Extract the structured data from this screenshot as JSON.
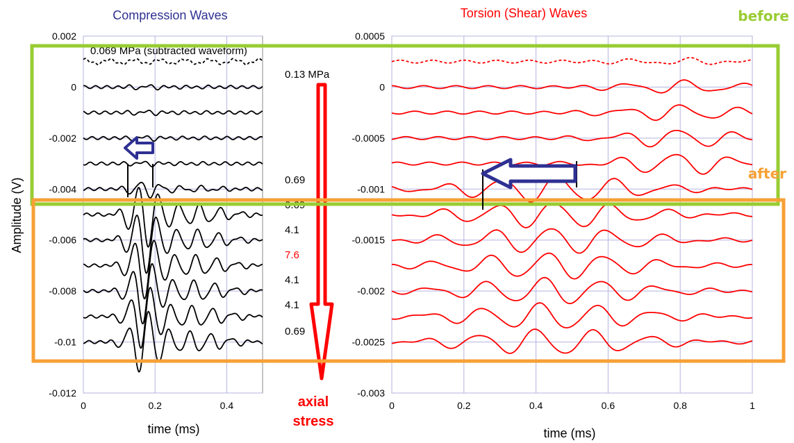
{
  "chart_data": [
    {
      "type": "line",
      "title": "Compression Waves",
      "ylabel": "Amplitude (V)",
      "xlabel": "time (ms)",
      "xlim": [
        0,
        0.5
      ],
      "ylim": [
        -0.012,
        0.002
      ],
      "x_ticks": [
        "0",
        "0.2",
        "0.4"
      ],
      "y_ticks": [
        "0.002",
        "0",
        "-0.002",
        "-0.004",
        "-0.006",
        "-0.008",
        "-0.01",
        "-0.012"
      ],
      "grid": true,
      "series": [
        {
          "offset": 0.001,
          "style": "dashed"
        },
        {
          "offset": 0.0
        },
        {
          "offset": -0.001
        },
        {
          "offset": -0.002
        },
        {
          "offset": -0.003
        },
        {
          "offset": -0.004
        },
        {
          "offset": -0.005
        },
        {
          "offset": -0.006
        },
        {
          "offset": -0.007
        },
        {
          "offset": -0.008
        },
        {
          "offset": -0.009
        },
        {
          "offset": -0.01
        }
      ],
      "color": "#000000"
    },
    {
      "type": "line",
      "title": "Torsion (Shear) Waves",
      "xlabel": "time (ms)",
      "xlim": [
        0,
        1
      ],
      "ylim": [
        -0.003,
        0.0005
      ],
      "x_ticks": [
        "0",
        "0.2",
        "0.4",
        "0.6",
        "0.8",
        "1"
      ],
      "y_ticks": [
        "0.0005",
        "0",
        "-0.0005",
        "-0.001",
        "-0.0015",
        "-0.002",
        "-0.0025",
        "-0.003"
      ],
      "grid": true,
      "series": [
        {
          "offset": 0.00025,
          "style": "dashed"
        },
        {
          "offset": 0.0
        },
        {
          "offset": -0.00025
        },
        {
          "offset": -0.0005
        },
        {
          "offset": -0.00075
        },
        {
          "offset": -0.001
        },
        {
          "offset": -0.00125
        },
        {
          "offset": -0.0015
        },
        {
          "offset": -0.00175
        },
        {
          "offset": -0.002
        },
        {
          "offset": -0.00225
        },
        {
          "offset": -0.0025
        }
      ],
      "color": "#ff0000"
    }
  ],
  "annotations": {
    "subtracted_label": "0.069 MPa (subtracted waveform)",
    "stress_labels": [
      "0.13 MPa",
      "0.69",
      "0.69",
      "4.1",
      "7.6",
      "4.1",
      "4.1",
      "0.69"
    ],
    "stress_highlight_color": "#ff0000",
    "arrow_caption_1": "axial",
    "arrow_caption_2": "stress",
    "before_label": "before",
    "after_label": "after"
  },
  "colors": {
    "before_box": "#99cc33",
    "after_box": "#f7a035",
    "compression_title": "#2e3092",
    "torsion_title": "#ff0000",
    "arrow_red": "#ff0000",
    "arrow_blue": "#2e3092",
    "grid": "#b3b3e0"
  }
}
